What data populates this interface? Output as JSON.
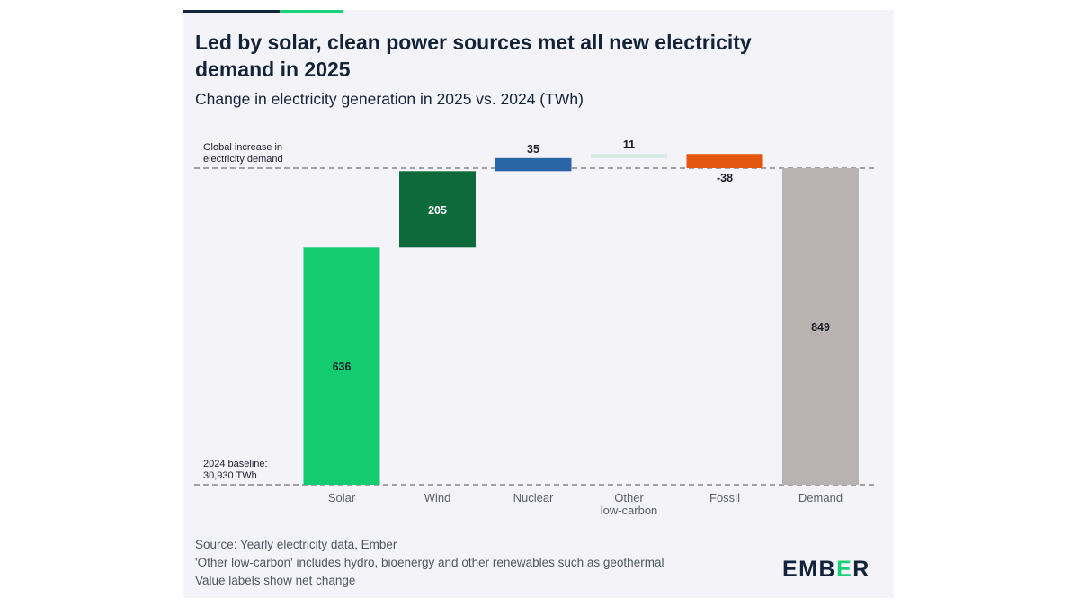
{
  "header": {
    "title": "Led by solar, clean power sources met all new electricity demand in 2025",
    "subtitle": "Change in electricity generation in 2025 vs. 2024 (TWh)"
  },
  "chart_data": {
    "type": "bar",
    "subtype": "waterfall",
    "title": "Led by solar, clean power sources met all new electricity demand in 2025",
    "subtitle": "Change in electricity generation in 2025 vs. 2024 (TWh)",
    "xlabel": "",
    "ylabel": "",
    "categories": [
      "Solar",
      "Wind",
      "Nuclear",
      "Other low-carbon",
      "Fossil",
      "Demand"
    ],
    "category_lines": [
      [
        "Solar"
      ],
      [
        "Wind"
      ],
      [
        "Nuclear"
      ],
      [
        "Other",
        "low-carbon"
      ],
      [
        "Fossil"
      ],
      [
        "Demand"
      ]
    ],
    "values": [
      636,
      205,
      35,
      11,
      -38,
      849
    ],
    "value_labels": [
      "636",
      "205",
      "35",
      "11",
      "-38",
      "849"
    ],
    "bars": [
      {
        "category": "Solar",
        "start": 0,
        "end": 636,
        "color": "#12cc6f",
        "label_position": "inside",
        "label_color": "#1c1c2b"
      },
      {
        "category": "Wind",
        "start": 636,
        "end": 841,
        "color": "#0f6a3b",
        "label_position": "inside",
        "label_color": "#ffffff"
      },
      {
        "category": "Nuclear",
        "start": 841,
        "end": 876,
        "color": "#2a66a6",
        "label_position": "above",
        "label_color": "#1c1c2b"
      },
      {
        "category": "Other low-carbon",
        "start": 876,
        "end": 887,
        "color": "#d3ece2",
        "label_position": "above",
        "label_color": "#1c1c2b"
      },
      {
        "category": "Fossil",
        "start": 887,
        "end": 849,
        "color": "#e2560f",
        "label_position": "below",
        "label_color": "#1c1c2b"
      },
      {
        "category": "Demand",
        "start": 0,
        "end": 849,
        "color": "#b8b3b0",
        "label_position": "inside",
        "label_color": "#1c1c2b"
      }
    ],
    "ylim": [
      0,
      887
    ],
    "reference_lines": [
      {
        "value": 849,
        "label": [
          "Global increase in",
          "electricity demand"
        ],
        "style": "dashed"
      },
      {
        "value": 0,
        "label": [
          "2024 baseline:",
          "30,930 TWh"
        ],
        "style": "dashed"
      }
    ],
    "grid": false,
    "legend": "none"
  },
  "footer": {
    "source": "Source: Yearly electricity data, Ember",
    "note": "'Other low-carbon' includes hydro, bioenergy and other renewables such as geothermal",
    "note2": "Value labels show net change"
  },
  "logo": {
    "text_before": "EMB",
    "text_accent": "E",
    "text_after": "R",
    "accent_color": "#1bd07b"
  }
}
